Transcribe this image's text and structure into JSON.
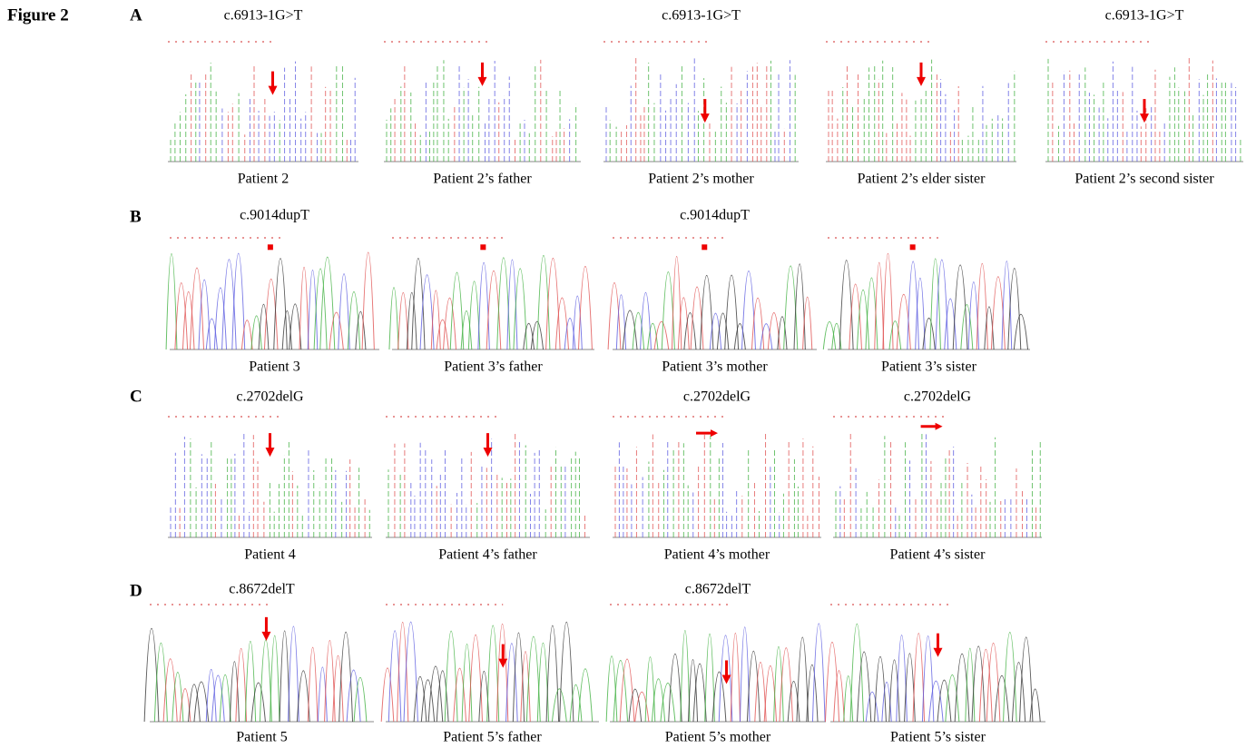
{
  "figure_label": "Figure 2",
  "panels": [
    {
      "label": "A",
      "items": [
        {
          "mutation": "c.6913-1G>T",
          "caption": "Patient 2"
        },
        {
          "caption": "Patient 2’s father"
        },
        {
          "mutation": "c.6913-1G>T",
          "caption": "Patient 2’s mother"
        },
        {
          "caption": "Patient 2’s elder sister"
        },
        {
          "mutation": "c.6913-1G>T",
          "caption": "Patient 2’s second sister"
        }
      ]
    },
    {
      "label": "B",
      "items": [
        {
          "mutation": "c.9014dupT",
          "caption": "Patient 3"
        },
        {
          "caption": "Patient 3’s father"
        },
        {
          "mutation": "c.9014dupT",
          "caption": "Patient 3’s mother"
        },
        {
          "caption": "Patient 3’s sister"
        }
      ]
    },
    {
      "label": "C",
      "items": [
        {
          "mutation": "c.2702delG",
          "caption": "Patient 4"
        },
        {
          "caption": "Patient 4’s father"
        },
        {
          "mutation": "c.2702delG",
          "caption": "Patient 4’s mother"
        },
        {
          "mutation": "c.2702delG",
          "caption": "Patient 4’s sister"
        }
      ]
    },
    {
      "label": "D",
      "items": [
        {
          "mutation": "c.8672delT",
          "caption": "Patient 5"
        },
        {
          "caption": "Patient 5’s father"
        },
        {
          "mutation": "c.8672delT",
          "caption": "Patient 5’s mother"
        },
        {
          "caption": "Patient 5’s sister"
        }
      ]
    }
  ]
}
